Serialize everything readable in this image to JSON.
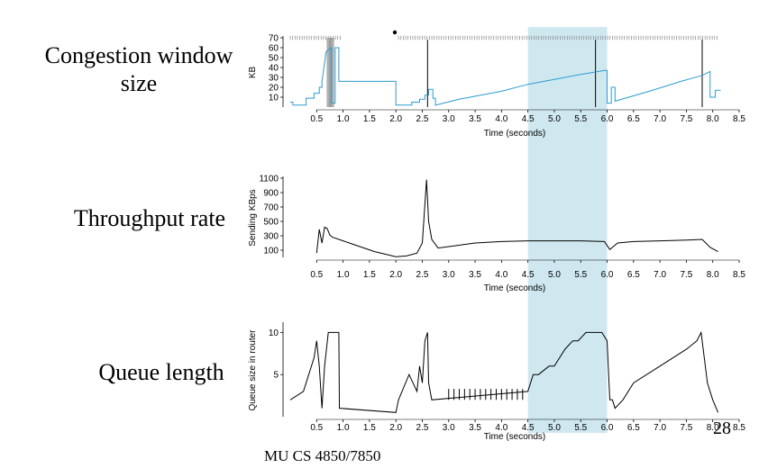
{
  "labels": {
    "cwnd_line1": "Congestion window",
    "cwnd_line2": "size",
    "throughput": "Throughput rate",
    "queue": "Queue length"
  },
  "footer": "MU CS 4850/7850",
  "page_number": "28",
  "colors": {
    "highlight": "#cfe8f0",
    "cwnd_line": "#2d9bd0",
    "ink": "#000000",
    "marker": "#808080"
  },
  "highlight_band": [
    4.5,
    6.0
  ],
  "chart_data": [
    {
      "type": "line",
      "xlabel": "Time (seconds)",
      "ylabel": "KB",
      "xlim": [
        0,
        8.5
      ],
      "ylim": [
        0,
        70
      ],
      "xticks": [
        "0.5",
        "1.0",
        "1.5",
        "2.0",
        "2.5",
        "3.0",
        "3.5",
        "4.0",
        "4.5",
        "5.0",
        "5.5",
        "6.0",
        "6.5",
        "7.0",
        "7.5",
        "8.0",
        "8.5"
      ],
      "yticks": [
        "10",
        "20",
        "30",
        "40",
        "50",
        "60",
        "70"
      ],
      "series": [
        {
          "x": [
            0.0,
            0.05,
            0.05,
            0.3,
            0.3,
            0.45,
            0.45,
            0.55,
            0.55,
            0.6,
            0.6,
            0.68,
            0.78,
            0.78,
            0.85,
            0.85,
            0.92,
            0.92,
            2.0,
            2.0,
            2.3,
            2.3,
            2.45,
            2.45,
            2.55,
            2.55,
            2.62,
            2.62,
            2.7,
            2.7,
            2.75,
            2.75,
            3.2,
            4.0,
            4.5,
            5.0,
            5.5,
            5.95,
            6.0,
            6.0,
            6.08,
            6.08,
            6.15,
            6.15,
            6.8,
            7.4,
            7.8,
            7.95,
            7.95,
            8.05,
            8.05,
            8.15
          ],
          "y": [
            5,
            5,
            2,
            2,
            9,
            9,
            14,
            14,
            20,
            20,
            26,
            56,
            60,
            4,
            4,
            60,
            60,
            26,
            26,
            2,
            2,
            5,
            5,
            8,
            8,
            12,
            12,
            18,
            18,
            9,
            9,
            2,
            8,
            16,
            23,
            28,
            33,
            37,
            37,
            4,
            4,
            20,
            20,
            6,
            16,
            26,
            32,
            36,
            10,
            10,
            17,
            17
          ]
        }
      ],
      "vlines": [
        2.6,
        5.78,
        7.8
      ],
      "markers": {
        "dense_x": [
          0.7,
          0.72,
          0.74,
          0.76,
          0.78,
          0.8,
          0.82
        ],
        "tick_strips": [
          [
            0.0,
            0.95
          ],
          [
            2.05,
            8.1
          ]
        ],
        "dot_x": 1.98
      }
    },
    {
      "type": "line",
      "xlabel": "Time (seconds)",
      "ylabel": "Sending KBps",
      "xlim": [
        0,
        8.5
      ],
      "ylim": [
        0,
        1100
      ],
      "xticks": [
        "0.5",
        "1.0",
        "1.5",
        "2.0",
        "2.5",
        "3.0",
        "3.5",
        "4.0",
        "4.5",
        "5.0",
        "5.5",
        "6.0",
        "6.5",
        "7.0",
        "7.5",
        "8.0",
        "8.5"
      ],
      "yticks": [
        "100",
        "300",
        "500",
        "700",
        "900",
        "1100"
      ],
      "series": [
        {
          "x": [
            0.5,
            0.55,
            0.6,
            0.65,
            0.7,
            0.75,
            0.8,
            1.2,
            1.6,
            2.0,
            2.2,
            2.4,
            2.5,
            2.58,
            2.62,
            2.68,
            2.8,
            3.0,
            3.5,
            4.0,
            4.5,
            5.0,
            5.5,
            5.95,
            6.05,
            6.2,
            6.5,
            7.0,
            7.5,
            7.8,
            7.95,
            8.1
          ],
          "y": [
            60,
            390,
            200,
            420,
            400,
            310,
            280,
            180,
            80,
            10,
            20,
            60,
            200,
            1080,
            500,
            250,
            130,
            150,
            200,
            220,
            230,
            230,
            230,
            220,
            110,
            200,
            220,
            230,
            240,
            250,
            140,
            80
          ]
        }
      ]
    },
    {
      "type": "line",
      "xlabel": "Time (seconds)",
      "ylabel": "Queue size in router",
      "xlim": [
        0,
        8.5
      ],
      "ylim": [
        0,
        11
      ],
      "xticks": [
        "0.5",
        "1.0",
        "1.5",
        "2.0",
        "2.5",
        "3.0",
        "3.5",
        "4.0",
        "4.5",
        "5.0",
        "5.5",
        "6.0",
        "6.5",
        "7.0",
        "7.5",
        "8.0",
        "8.5"
      ],
      "yticks": [
        "5",
        "10"
      ],
      "series": [
        {
          "x": [
            0.0,
            0.25,
            0.45,
            0.5,
            0.55,
            0.6,
            0.65,
            0.72,
            0.75,
            0.78,
            0.92,
            0.93,
            2.0,
            2.05,
            2.25,
            2.4,
            2.45,
            2.5,
            2.55,
            2.6,
            2.62,
            2.68,
            4.5,
            4.6,
            4.7,
            4.9,
            5.0,
            5.1,
            5.2,
            5.35,
            5.45,
            5.6,
            5.9,
            6.0,
            6.05,
            6.1,
            6.15,
            6.3,
            6.5,
            7.0,
            7.5,
            7.7,
            7.78,
            7.9,
            8.0,
            8.1
          ],
          "y": [
            2,
            3,
            7,
            9,
            6,
            1,
            6,
            10,
            10,
            10,
            10,
            1,
            0.5,
            2,
            5,
            3,
            6,
            4,
            9,
            10,
            4,
            2,
            3,
            5,
            5,
            6,
            6,
            7,
            8,
            9,
            9,
            10,
            10,
            9,
            2,
            2,
            1,
            2,
            4,
            6,
            8,
            9,
            10,
            4,
            2,
            0.5
          ]
        }
      ],
      "spike_x": [
        3.0,
        3.1,
        3.2,
        3.3,
        3.4,
        3.5,
        3.6,
        3.7,
        3.8,
        3.9,
        4.0,
        4.1,
        4.2,
        4.3,
        4.4
      ],
      "base_level": 2
    }
  ]
}
